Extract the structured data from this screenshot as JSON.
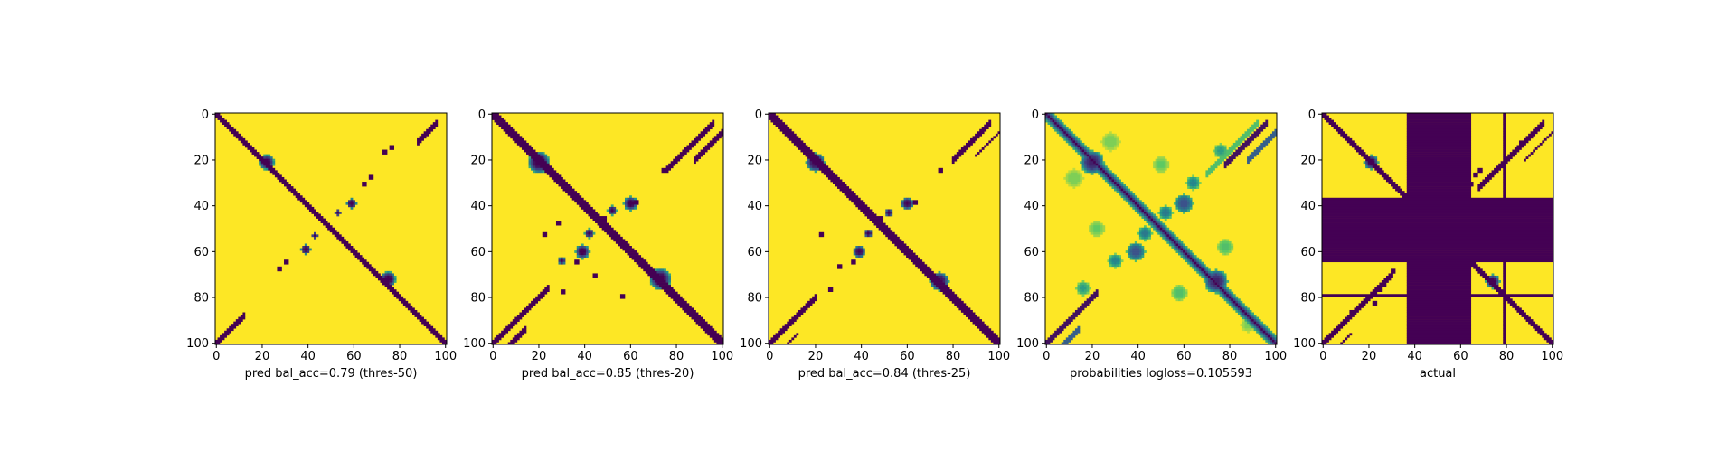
{
  "figure": {
    "colors": {
      "low": "#440154",
      "high": "#fde725",
      "background": "#ffffff",
      "axis": "#000000"
    }
  },
  "chart_data": [
    {
      "type": "heatmap",
      "title": "",
      "xlabel": "pred bal_acc=0.79 (thres-50)",
      "ylabel": "",
      "xlim": [
        0,
        101
      ],
      "ylim": [
        101,
        0
      ],
      "x_ticks": [
        "0",
        "20",
        "40",
        "60",
        "80",
        "100"
      ],
      "y_ticks": [
        "0",
        "20",
        "40",
        "60",
        "80",
        "100"
      ],
      "n": 101,
      "diagonal_halfwidth": 1.8,
      "blobs": [
        {
          "x": 22,
          "y": 21,
          "r": 3.2,
          "v": 0
        },
        {
          "x": 75,
          "y": 72,
          "r": 3.2,
          "v": 0
        },
        {
          "x": 59,
          "y": 39,
          "r": 2.2,
          "v": 0
        },
        {
          "x": 39,
          "y": 59,
          "r": 2.2,
          "v": 0
        },
        {
          "x": 53,
          "y": 43,
          "r": 1.4,
          "v": 0
        },
        {
          "x": 43,
          "y": 53,
          "r": 1.4,
          "v": 0
        }
      ],
      "bands": [
        {
          "offset": 100,
          "x_from": 88,
          "x_to": 96,
          "hw": 0.9,
          "v": 0
        },
        {
          "offset": -100,
          "x_from": 0,
          "x_to": 12,
          "hw": 0.9,
          "v": 0
        }
      ],
      "specks": [
        [
          73,
          16
        ],
        [
          76,
          14
        ],
        [
          30,
          64
        ],
        [
          64,
          30
        ],
        [
          67,
          27
        ],
        [
          27,
          67
        ]
      ]
    },
    {
      "type": "heatmap",
      "title": "",
      "xlabel": "pred bal_acc=0.85 (thres-20)",
      "ylabel": "",
      "xlim": [
        0,
        101
      ],
      "ylim": [
        101,
        0
      ],
      "x_ticks": [
        "0",
        "20",
        "40",
        "60",
        "80",
        "100"
      ],
      "y_ticks": [
        "0",
        "20",
        "40",
        "60",
        "80",
        "100"
      ],
      "n": 101,
      "diagonal_halfwidth": 2.8,
      "blobs": [
        {
          "x": 20,
          "y": 21,
          "r": 4.5,
          "v": 0
        },
        {
          "x": 73,
          "y": 72,
          "r": 4.5,
          "v": 0
        },
        {
          "x": 60,
          "y": 39,
          "r": 3.0,
          "v": 0
        },
        {
          "x": 39,
          "y": 60,
          "r": 3.0,
          "v": 0
        },
        {
          "x": 52,
          "y": 42,
          "r": 2.0,
          "v": 0
        },
        {
          "x": 42,
          "y": 52,
          "r": 2.0,
          "v": 0
        },
        {
          "x": 30,
          "y": 64,
          "r": 1.6,
          "v": 0
        }
      ],
      "bands": [
        {
          "offset": 100,
          "x_from": 76,
          "x_to": 96,
          "hw": 1.3,
          "v": 0
        },
        {
          "offset": -100,
          "x_from": 0,
          "x_to": 24,
          "hw": 1.3,
          "v": 0
        },
        {
          "offset": 108,
          "x_from": 88,
          "x_to": 101,
          "hw": 0.8,
          "v": 0
        },
        {
          "offset": -108,
          "x_from": 0,
          "x_to": 14,
          "hw": 0.8,
          "v": 0
        }
      ],
      "specks": [
        [
          74,
          24
        ],
        [
          76,
          23
        ],
        [
          48,
          45
        ],
        [
          22,
          77
        ],
        [
          30,
          77
        ],
        [
          36,
          64
        ],
        [
          56,
          79
        ],
        [
          28,
          47
        ],
        [
          22,
          52
        ],
        [
          62,
          38
        ],
        [
          44,
          70
        ]
      ]
    },
    {
      "type": "heatmap",
      "title": "",
      "xlabel": "pred bal_acc=0.84 (thres-25)",
      "ylabel": "",
      "xlim": [
        0,
        101
      ],
      "ylim": [
        101,
        0
      ],
      "x_ticks": [
        "0",
        "20",
        "40",
        "60",
        "80",
        "100"
      ],
      "y_ticks": [
        "0",
        "20",
        "40",
        "60",
        "80",
        "100"
      ],
      "n": 101,
      "diagonal_halfwidth": 2.5,
      "blobs": [
        {
          "x": 20,
          "y": 21,
          "r": 4.0,
          "v": 0
        },
        {
          "x": 74,
          "y": 73,
          "r": 4.0,
          "v": 0
        },
        {
          "x": 60,
          "y": 39,
          "r": 2.6,
          "v": 0
        },
        {
          "x": 39,
          "y": 60,
          "r": 2.6,
          "v": 0
        },
        {
          "x": 52,
          "y": 43,
          "r": 1.8,
          "v": 0
        },
        {
          "x": 43,
          "y": 52,
          "r": 1.8,
          "v": 0
        }
      ],
      "bands": [
        {
          "offset": 100,
          "x_from": 80,
          "x_to": 96,
          "hw": 1.2,
          "v": 0
        },
        {
          "offset": -100,
          "x_from": 0,
          "x_to": 20,
          "hw": 1.2,
          "v": 0
        },
        {
          "offset": 108,
          "x_from": 90,
          "x_to": 101,
          "hw": 0.7,
          "v": 0
        },
        {
          "offset": -108,
          "x_from": 0,
          "x_to": 12,
          "hw": 0.7,
          "v": 0
        }
      ],
      "specks": [
        [
          74,
          24
        ],
        [
          36,
          64
        ],
        [
          30,
          66
        ],
        [
          48,
          45
        ],
        [
          22,
          52
        ],
        [
          26,
          76
        ],
        [
          63,
          38
        ]
      ]
    },
    {
      "type": "heatmap",
      "title": "",
      "xlabel": "probabilities logloss=0.105593",
      "ylabel": "",
      "xlim": [
        0,
        101
      ],
      "ylim": [
        101,
        0
      ],
      "x_ticks": [
        "0",
        "20",
        "40",
        "60",
        "80",
        "100"
      ],
      "y_ticks": [
        "0",
        "20",
        "40",
        "60",
        "80",
        "100"
      ],
      "n": 101,
      "diagonal_halfwidth": 3.6,
      "diagonal_profile": "soft",
      "blobs": [
        {
          "x": 20,
          "y": 21,
          "r": 5.0,
          "v": 0.1
        },
        {
          "x": 74,
          "y": 73,
          "r": 5.0,
          "v": 0.1
        },
        {
          "x": 60,
          "y": 39,
          "r": 4.0,
          "v": 0.25
        },
        {
          "x": 39,
          "y": 60,
          "r": 4.0,
          "v": 0.25
        },
        {
          "x": 30,
          "y": 64,
          "r": 3.0,
          "v": 0.45
        },
        {
          "x": 64,
          "y": 30,
          "r": 3.0,
          "v": 0.45
        },
        {
          "x": 52,
          "y": 43,
          "r": 3.0,
          "v": 0.4
        },
        {
          "x": 43,
          "y": 52,
          "r": 3.0,
          "v": 0.4
        },
        {
          "x": 76,
          "y": 16,
          "r": 3.0,
          "v": 0.55
        },
        {
          "x": 16,
          "y": 76,
          "r": 3.0,
          "v": 0.55
        },
        {
          "x": 50,
          "y": 22,
          "r": 3.5,
          "v": 0.75
        },
        {
          "x": 22,
          "y": 50,
          "r": 3.5,
          "v": 0.75
        },
        {
          "x": 12,
          "y": 28,
          "r": 4.0,
          "v": 0.8
        },
        {
          "x": 28,
          "y": 12,
          "r": 4.0,
          "v": 0.8
        },
        {
          "x": 58,
          "y": 78,
          "r": 3.5,
          "v": 0.7
        },
        {
          "x": 78,
          "y": 58,
          "r": 3.5,
          "v": 0.7
        },
        {
          "x": 88,
          "y": 92,
          "r": 3.0,
          "v": 0.8
        }
      ],
      "bands": [
        {
          "offset": 100,
          "x_from": 78,
          "x_to": 96,
          "hw": 1.3,
          "v": 0.05
        },
        {
          "offset": -100,
          "x_from": 0,
          "x_to": 22,
          "hw": 1.3,
          "v": 0.05
        },
        {
          "offset": 108,
          "x_from": 88,
          "x_to": 101,
          "hw": 0.8,
          "v": 0.3
        },
        {
          "offset": -108,
          "x_from": 0,
          "x_to": 14,
          "hw": 0.8,
          "v": 0.3
        },
        {
          "offset": 96,
          "x_from": 70,
          "x_to": 92,
          "hw": 1.0,
          "v": 0.7
        },
        {
          "offset": 8,
          "x_from": 20,
          "x_to": 80,
          "hw": 0.6,
          "v": 0.5
        },
        {
          "offset": -8,
          "x_from": 20,
          "x_to": 80,
          "hw": 0.6,
          "v": 0.5
        }
      ],
      "specks": []
    },
    {
      "type": "heatmap",
      "title": "",
      "xlabel": "actual",
      "ylabel": "",
      "xlim": [
        0,
        101
      ],
      "ylim": [
        101,
        0
      ],
      "x_ticks": [
        "0",
        "20",
        "40",
        "60",
        "80",
        "100"
      ],
      "y_ticks": [
        "0",
        "20",
        "40",
        "60",
        "80",
        "100"
      ],
      "n": 101,
      "diagonal_halfwidth": 1.6,
      "blobs": [
        {
          "x": 21,
          "y": 21,
          "r": 3.0,
          "v": 0
        },
        {
          "x": 74,
          "y": 73,
          "r": 3.0,
          "v": 0
        }
      ],
      "bands": [
        {
          "offset": 100,
          "x_from": 68,
          "x_to": 96,
          "hw": 0.9,
          "v": 0
        },
        {
          "offset": -100,
          "x_from": 0,
          "x_to": 30,
          "hw": 0.9,
          "v": 0
        },
        {
          "offset": 108,
          "x_from": 88,
          "x_to": 101,
          "hw": 0.6,
          "v": 0
        },
        {
          "offset": -108,
          "x_from": 0,
          "x_to": 12,
          "hw": 0.6,
          "v": 0
        }
      ],
      "specks": [
        [
          66,
          26
        ],
        [
          68,
          24
        ],
        [
          64,
          30
        ],
        [
          24,
          76
        ],
        [
          26,
          74
        ],
        [
          30,
          68
        ],
        [
          19,
          79
        ],
        [
          22,
          82
        ],
        [
          12,
          86
        ],
        [
          86,
          12
        ]
      ],
      "masked_rows": [
        [
          37,
          64
        ],
        [
          79,
          79
        ]
      ],
      "masked_cols": [
        [
          37,
          64
        ],
        [
          79,
          79
        ]
      ]
    }
  ]
}
